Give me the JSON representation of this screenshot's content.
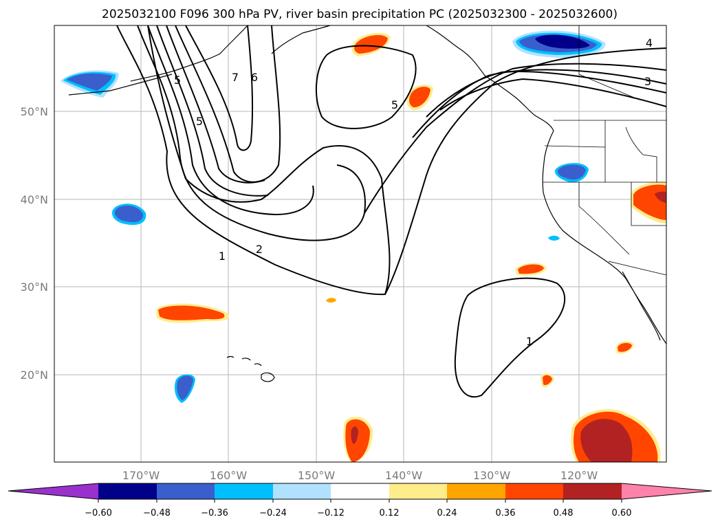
{
  "title": "2025032100 F096 300 hPa PV, river basin precipitation PC (2025032300 - 2025032600)",
  "lat_labels": [
    "50°N",
    "40°N",
    "30°N",
    "20°N"
  ],
  "lon_labels": [
    "170°W",
    "160°W",
    "150°W",
    "140°W",
    "130°W",
    "120°W"
  ],
  "contour_labels": [
    "1",
    "2",
    "5",
    "6",
    "7",
    "5",
    "5",
    "4",
    "3",
    "1"
  ],
  "colorbar": {
    "tick_labels": [
      "−0.60",
      "−0.48",
      "−0.36",
      "−0.24",
      "−0.12",
      "0.12",
      "0.24",
      "0.36",
      "0.48",
      "0.60"
    ],
    "colors": [
      "#9932cc",
      "#00008b",
      "#3a5fcd",
      "#00bfff",
      "#b0e2ff",
      "#ffffff",
      "#ffec8b",
      "#ffa500",
      "#ff4500",
      "#b22222",
      "#ff82ab"
    ]
  },
  "colors": {
    "neg_dark": "#00008b",
    "neg_mid": "#3a5fcd",
    "neg_light": "#00bfff",
    "neg_pale": "#b0e2ff",
    "pos_pale": "#ffec8b",
    "pos_light": "#ffa500",
    "pos_mid": "#ff4500",
    "pos_dark": "#b22222"
  }
}
